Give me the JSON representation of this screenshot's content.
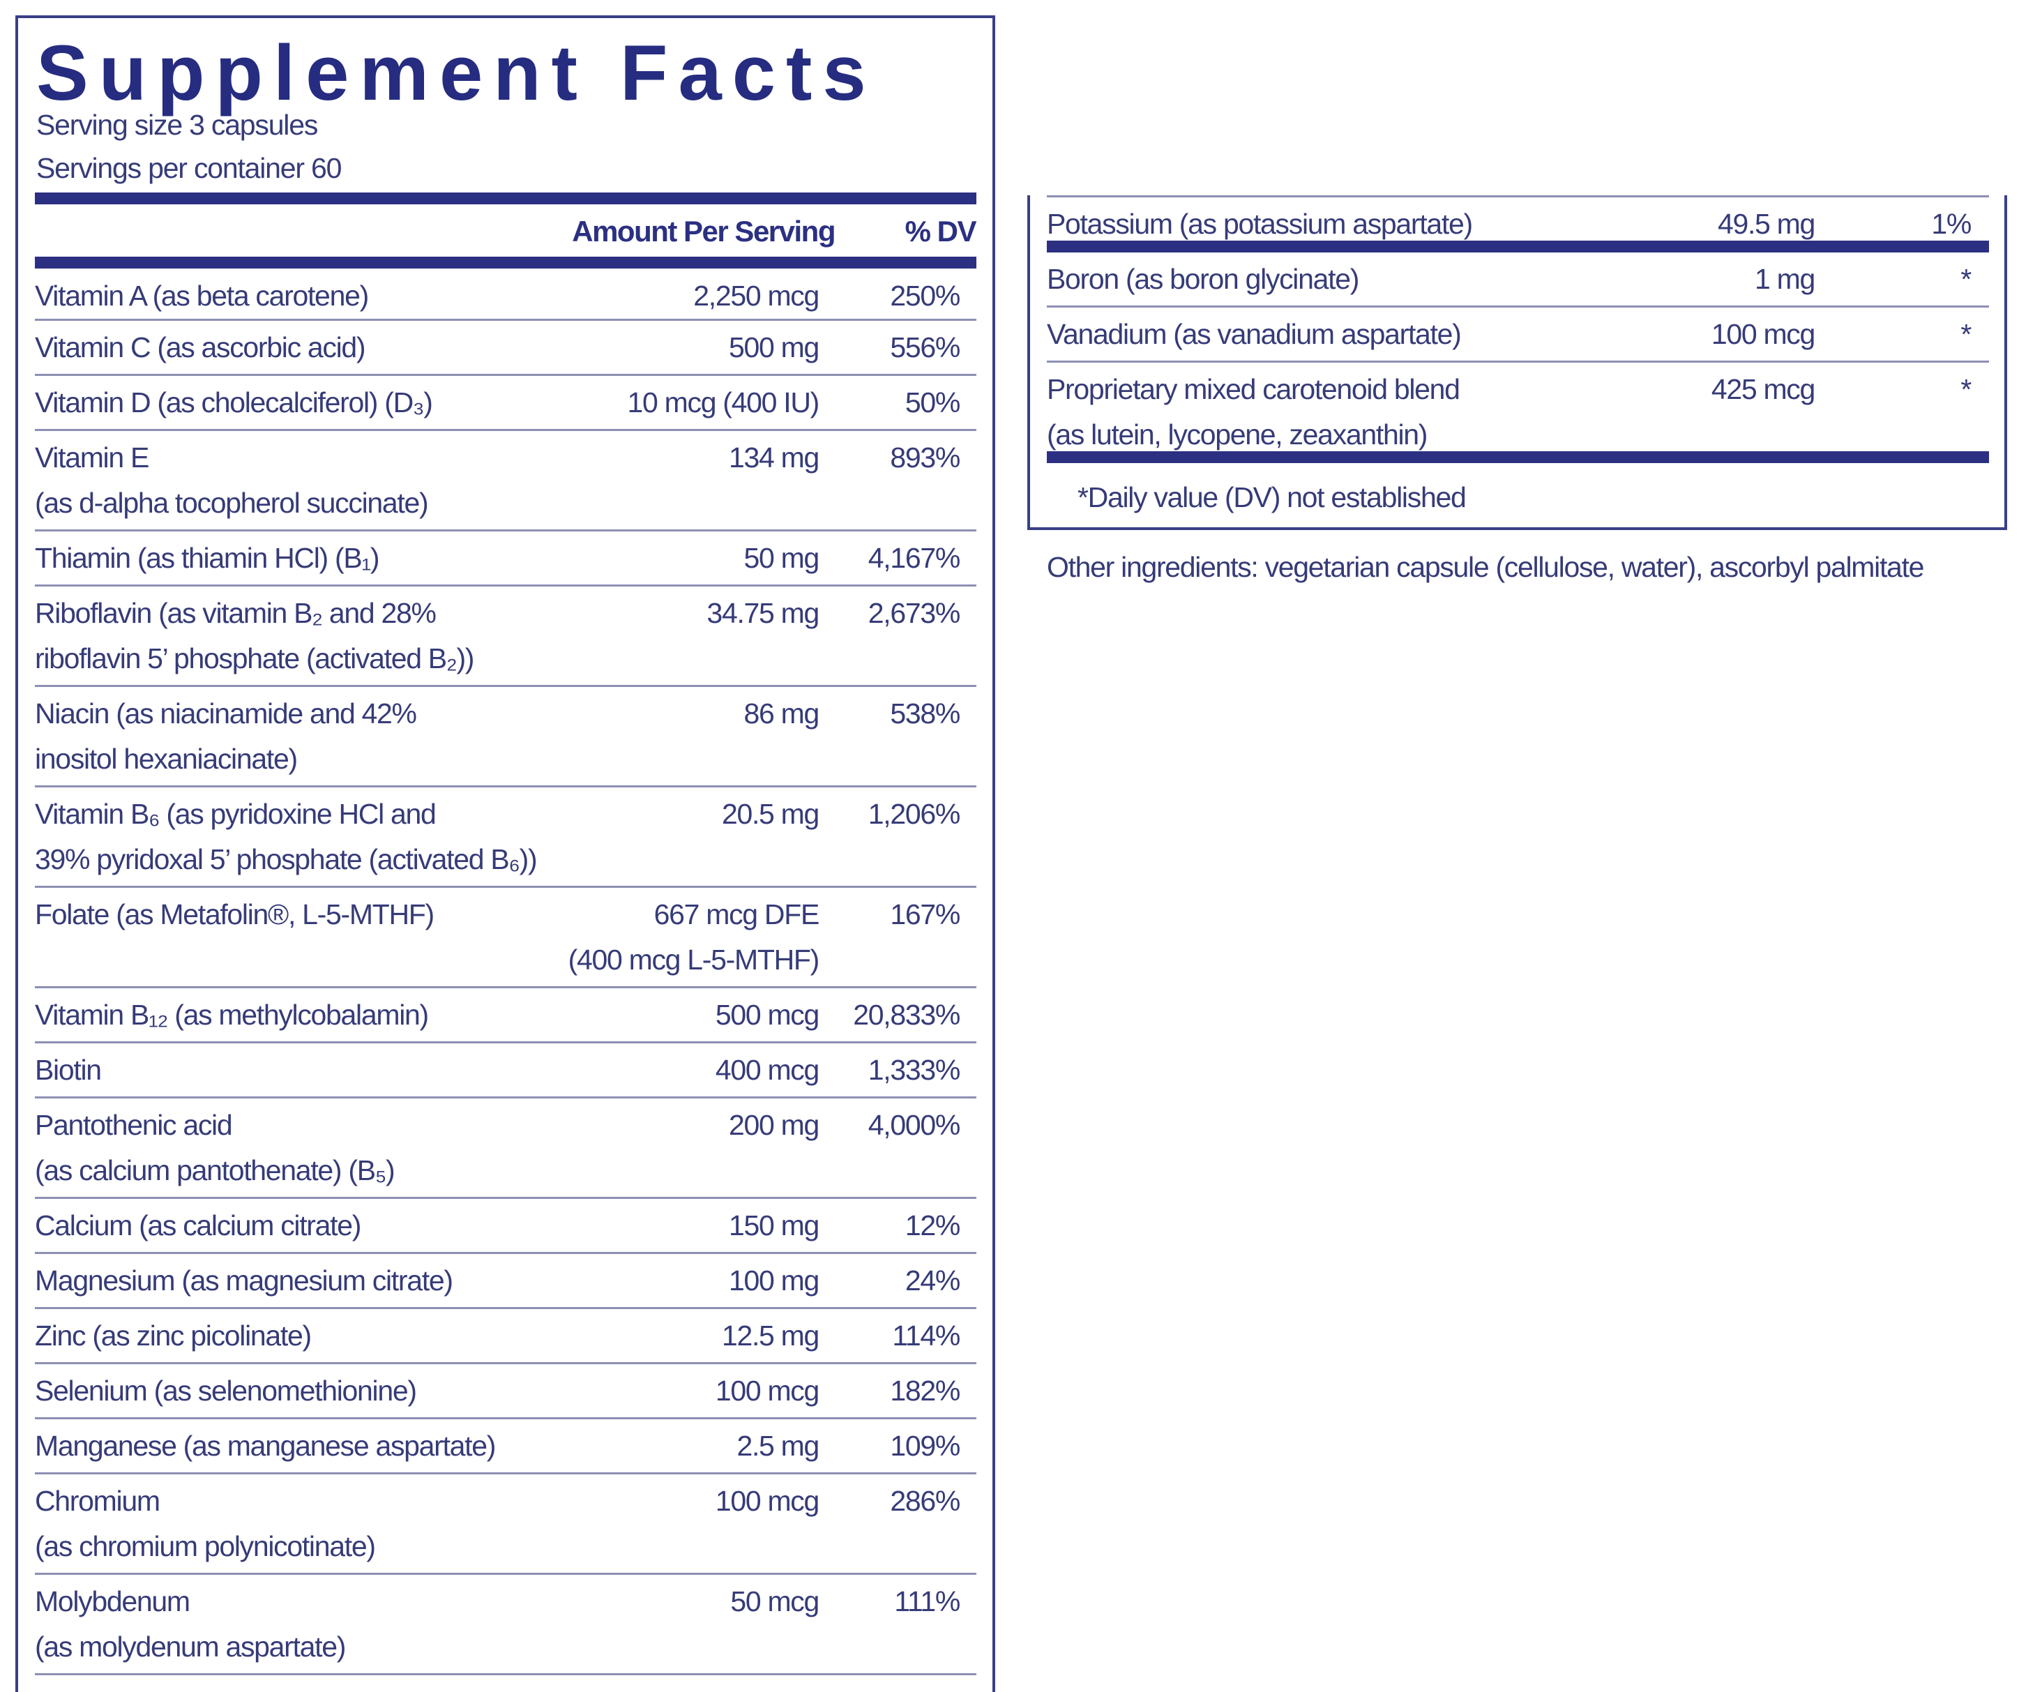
{
  "title": "Supplement Facts",
  "serving_size": "Serving size  3 capsules",
  "servings_per_container": "Servings per container  60",
  "headers": {
    "amount": "Amount Per Serving",
    "dv": "% DV"
  },
  "colors": {
    "navy": "#2b3082",
    "text": "#363b78",
    "rule": "#8d90b3"
  },
  "left_rows": [
    {
      "name": [
        "Vitamin A (as beta carotene)"
      ],
      "amount": [
        "2,250 mcg"
      ],
      "dv": "250%"
    },
    {
      "name": [
        "Vitamin C (as ascorbic acid)"
      ],
      "amount": [
        "500 mg"
      ],
      "dv": "556%"
    },
    {
      "name": [
        "Vitamin D (as cholecalciferol) (D₃)"
      ],
      "amount": [
        "10 mcg (400 IU)"
      ],
      "dv": "50%"
    },
    {
      "name": [
        "Vitamin E",
        "(as d-alpha tocopherol succinate)"
      ],
      "amount": [
        "134 mg"
      ],
      "dv": "893%"
    },
    {
      "name": [
        "Thiamin (as thiamin HCl) (B₁)"
      ],
      "amount": [
        "50 mg"
      ],
      "dv": "4,167%"
    },
    {
      "name": [
        "Riboflavin (as vitamin B₂ and 28%",
        "riboflavin 5’ phosphate (activated B₂))"
      ],
      "amount": [
        "34.75 mg"
      ],
      "dv": "2,673%"
    },
    {
      "name": [
        "Niacin (as niacinamide and 42%",
        "inositol hexaniacinate)"
      ],
      "amount": [
        "86 mg"
      ],
      "dv": "538%"
    },
    {
      "name": [
        "Vitamin B₆ (as pyridoxine HCl and",
        "39% pyridoxal 5’ phosphate (activated B₆))"
      ],
      "amount": [
        "20.5 mg"
      ],
      "dv": "1,206%"
    },
    {
      "name": [
        "Folate (as Metafolin®, L-5-MTHF)"
      ],
      "amount": [
        "667 mcg DFE",
        "(400 mcg L-5-MTHF)"
      ],
      "dv": "167%"
    },
    {
      "name": [
        "Vitamin B₁₂ (as methylcobalamin)"
      ],
      "amount": [
        "500 mcg"
      ],
      "dv": "20,833%"
    },
    {
      "name": [
        "Biotin"
      ],
      "amount": [
        "400 mcg"
      ],
      "dv": "1,333%"
    },
    {
      "name": [
        "Pantothenic acid",
        "(as calcium pantothenate) (B₅)"
      ],
      "amount": [
        "200 mg"
      ],
      "dv": "4,000%"
    },
    {
      "name": [
        "Calcium (as calcium citrate)"
      ],
      "amount": [
        "150 mg"
      ],
      "dv": "12%"
    },
    {
      "name": [
        "Magnesium (as magnesium citrate)"
      ],
      "amount": [
        "100 mg"
      ],
      "dv": "24%"
    },
    {
      "name": [
        "Zinc (as zinc picolinate)"
      ],
      "amount": [
        "12.5 mg"
      ],
      "dv": "114%"
    },
    {
      "name": [
        "Selenium (as selenomethionine)"
      ],
      "amount": [
        "100 mcg"
      ],
      "dv": "182%"
    },
    {
      "name": [
        "Manganese (as manganese aspartate)"
      ],
      "amount": [
        "2.5 mg"
      ],
      "dv": "109%"
    },
    {
      "name": [
        "Chromium",
        "(as chromium polynicotinate)"
      ],
      "amount": [
        "100 mcg"
      ],
      "dv": "286%"
    },
    {
      "name": [
        "Molybdenum",
        "(as molydenum aspartate)"
      ],
      "amount": [
        "50 mcg"
      ],
      "dv": "111%"
    }
  ],
  "right_rows": [
    {
      "name": [
        "Potassium (as potassium aspartate)"
      ],
      "amount": [
        "49.5 mg"
      ],
      "dv": "1%"
    },
    {
      "name": [
        "Boron (as boron glycinate)"
      ],
      "amount": [
        "1 mg"
      ],
      "dv": "*"
    },
    {
      "name": [
        "Vanadium (as vanadium aspartate)"
      ],
      "amount": [
        "100 mcg"
      ],
      "dv": "*"
    },
    {
      "name": [
        "Proprietary mixed carotenoid blend",
        "(as lutein, lycopene, zeaxanthin)"
      ],
      "amount": [
        "425 mcg"
      ],
      "dv": "*"
    }
  ],
  "footnote": "*Daily value (DV) not established",
  "other_ingredients": "Other ingredients: vegetarian capsule (cellulose, water), ascorbyl palmitate"
}
